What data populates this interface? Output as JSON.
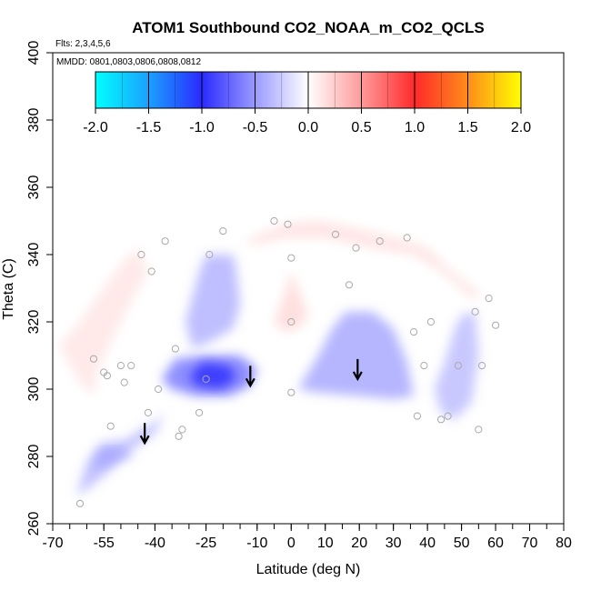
{
  "chart_data": {
    "type": "heatmap",
    "title": "ATOM1 Southbound CO2_NOAA_m_CO2_QCLS",
    "flights_label": "Flts: 2,3,4,5,6",
    "mmdd_label": "MMDD: 0801,0803,0806,0808,0812",
    "xlabel": "Latitude (deg N)",
    "ylabel": "Theta (C)",
    "xlim": [
      -70,
      80
    ],
    "ylim": [
      260,
      400
    ],
    "x_ticks": [
      -70,
      -55,
      -40,
      -25,
      -10,
      0,
      10,
      20,
      30,
      40,
      50,
      60,
      70,
      80
    ],
    "x_tick_labels": [
      "-70",
      "-55",
      "-40",
      "-25",
      "-10",
      "0",
      "10",
      "20",
      "30",
      "40",
      "50",
      "60",
      "70",
      "80"
    ],
    "x_minor_step": 5,
    "y_ticks": [
      260,
      280,
      300,
      320,
      340,
      360,
      380,
      400
    ],
    "y_tick_labels": [
      "260",
      "280",
      "300",
      "320",
      "340",
      "360",
      "380",
      "400"
    ],
    "colorbar": {
      "range": [
        -2.0,
        2.0
      ],
      "ticks": [
        -2.0,
        -1.5,
        -1.0,
        -0.5,
        0.0,
        0.5,
        1.0,
        1.5,
        2.0
      ],
      "tick_labels": [
        "-2.0",
        "-1.5",
        "-1.0",
        "-0.5",
        "0.0",
        "0.5",
        "1.0",
        "1.5",
        "2.0"
      ],
      "stops": [
        {
          "v": -2.0,
          "c": "#00ffff"
        },
        {
          "v": -1.5,
          "c": "#1aa0ff"
        },
        {
          "v": -1.0,
          "c": "#2a2aff"
        },
        {
          "v": -0.5,
          "c": "#9a9aff"
        },
        {
          "v": 0.0,
          "c": "#ffffff"
        },
        {
          "v": 0.5,
          "c": "#ff9a9a"
        },
        {
          "v": 1.0,
          "c": "#ff2a2a"
        },
        {
          "v": 1.5,
          "c": "#ff8c1a"
        },
        {
          "v": 2.0,
          "c": "#ffff00"
        }
      ]
    },
    "field_regions": [
      {
        "name": "southern-negative",
        "value": -0.35,
        "points": [
          [
            -63,
            268
          ],
          [
            -60,
            278
          ],
          [
            -56,
            284
          ],
          [
            -48,
            285
          ],
          [
            -44,
            288
          ],
          [
            -40,
            290
          ],
          [
            -37,
            293
          ],
          [
            -40,
            287
          ],
          [
            -47,
            282
          ],
          [
            -53,
            276
          ],
          [
            -58,
            272
          ]
        ]
      },
      {
        "name": "southern-low-lobe",
        "value": -0.45,
        "points": [
          [
            -58,
            278
          ],
          [
            -55,
            282
          ],
          [
            -50,
            282
          ],
          [
            -46,
            280
          ],
          [
            -52,
            279
          ],
          [
            -56,
            277
          ]
        ]
      },
      {
        "name": "midlat-core-outer",
        "value": -0.6,
        "points": [
          [
            -38,
            303
          ],
          [
            -34,
            309
          ],
          [
            -25,
            310
          ],
          [
            -15,
            310
          ],
          [
            -10,
            306
          ],
          [
            -12,
            301
          ],
          [
            -18,
            298
          ],
          [
            -28,
            298
          ],
          [
            -35,
            300
          ]
        ]
      },
      {
        "name": "midlat-core",
        "value": -0.95,
        "points": [
          [
            -30,
            304
          ],
          [
            -26,
            308
          ],
          [
            -18,
            307
          ],
          [
            -16,
            303
          ],
          [
            -21,
            300
          ],
          [
            -28,
            301
          ]
        ]
      },
      {
        "name": "upper-blue",
        "value": -0.35,
        "points": [
          [
            -31,
            320
          ],
          [
            -27,
            335
          ],
          [
            -25,
            340
          ],
          [
            -17,
            340
          ],
          [
            -16,
            335
          ],
          [
            -15,
            325
          ],
          [
            -17,
            318
          ],
          [
            -24,
            314
          ],
          [
            -29,
            312
          ]
        ]
      },
      {
        "name": "tropical-north-blue",
        "value": -0.4,
        "points": [
          [
            2,
            300
          ],
          [
            8,
            310
          ],
          [
            12,
            318
          ],
          [
            16,
            323
          ],
          [
            24,
            323
          ],
          [
            30,
            318
          ],
          [
            34,
            308
          ],
          [
            36,
            298
          ],
          [
            30,
            297
          ],
          [
            20,
            298
          ],
          [
            8,
            299
          ]
        ]
      },
      {
        "name": "northern-blue",
        "value": -0.3,
        "points": [
          [
            42,
            300
          ],
          [
            45,
            308
          ],
          [
            48,
            318
          ],
          [
            50,
            322
          ],
          [
            54,
            323
          ],
          [
            55,
            310
          ],
          [
            53,
            296
          ],
          [
            48,
            291
          ],
          [
            44,
            293
          ]
        ]
      },
      {
        "name": "southern-red-band",
        "value": 0.12,
        "points": [
          [
            -68,
            313
          ],
          [
            -62,
            320
          ],
          [
            -55,
            330
          ],
          [
            -50,
            337
          ],
          [
            -45,
            342
          ],
          [
            -42,
            335
          ],
          [
            -47,
            326
          ],
          [
            -52,
            316
          ],
          [
            -57,
            305
          ],
          [
            -58,
            298
          ],
          [
            -62,
            302
          ]
        ]
      },
      {
        "name": "top-red-band",
        "value": 0.15,
        "points": [
          [
            -14,
            344
          ],
          [
            -2,
            349
          ],
          [
            8,
            350
          ],
          [
            18,
            348
          ],
          [
            26,
            346
          ],
          [
            34,
            344
          ],
          [
            40,
            342
          ],
          [
            47,
            335
          ],
          [
            56,
            328
          ],
          [
            53,
            327
          ],
          [
            44,
            335
          ],
          [
            36,
            340
          ],
          [
            24,
            342
          ],
          [
            10,
            345
          ],
          [
            -2,
            345
          ],
          [
            -10,
            343
          ]
        ]
      },
      {
        "name": "center-red",
        "value": 0.18,
        "points": [
          [
            -5,
            320
          ],
          [
            -2,
            328
          ],
          [
            0,
            335
          ],
          [
            2,
            330
          ],
          [
            5,
            322
          ],
          [
            2,
            318
          ],
          [
            -2,
            317
          ]
        ]
      }
    ],
    "annotations": [
      {
        "type": "arrow-down",
        "x": -43,
        "y": 284
      },
      {
        "type": "arrow-down",
        "x": -12,
        "y": 301
      },
      {
        "type": "arrow-down",
        "x": 19.5,
        "y": 303
      }
    ],
    "observations": [
      [
        -62,
        266
      ],
      [
        -58,
        309
      ],
      [
        -55,
        305
      ],
      [
        -54,
        304
      ],
      [
        -53,
        289
      ],
      [
        -50,
        307
      ],
      [
        -49,
        302
      ],
      [
        -47,
        307
      ],
      [
        -44,
        340
      ],
      [
        -42,
        293
      ],
      [
        -41,
        335
      ],
      [
        -39,
        300
      ],
      [
        -37,
        344
      ],
      [
        -34,
        312
      ],
      [
        -33,
        286
      ],
      [
        -32,
        288
      ],
      [
        -27,
        293
      ],
      [
        -25,
        303
      ],
      [
        -24,
        340
      ],
      [
        -20,
        347
      ],
      [
        -5,
        350
      ],
      [
        -1,
        349
      ],
      [
        0,
        339
      ],
      [
        0,
        320
      ],
      [
        0,
        299
      ],
      [
        13,
        346
      ],
      [
        17,
        331
      ],
      [
        19,
        342
      ],
      [
        26,
        344
      ],
      [
        34,
        345
      ],
      [
        36,
        317
      ],
      [
        37,
        292
      ],
      [
        39,
        307
      ],
      [
        41,
        320
      ],
      [
        44,
        291
      ],
      [
        46,
        292
      ],
      [
        49,
        307
      ],
      [
        54,
        323
      ],
      [
        55,
        288
      ],
      [
        56,
        307
      ],
      [
        58,
        327
      ],
      [
        60,
        319
      ]
    ]
  }
}
